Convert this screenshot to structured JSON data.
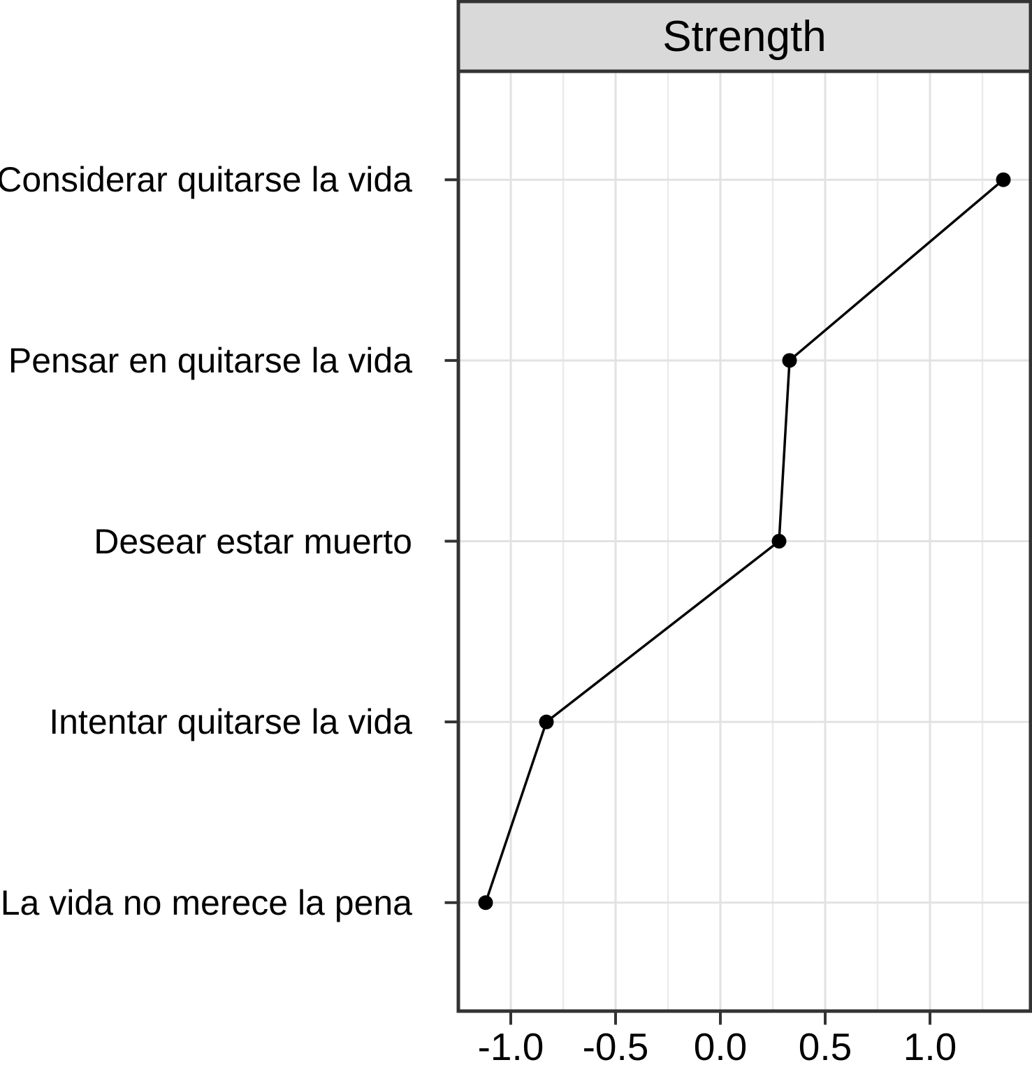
{
  "chart_data": {
    "type": "line",
    "orientation": "horizontal",
    "title": "Strength",
    "categories": [
      "Considerar quitarse la vida",
      "Pensar en quitarse la vida",
      "Desear estar muerto",
      "Intentar quitarse la vida",
      "La vida no merece la pena"
    ],
    "values": [
      1.35,
      0.33,
      0.28,
      -0.83,
      -1.12
    ],
    "x_ticks": [
      -1.0,
      -0.5,
      0.0,
      0.5,
      1.0
    ],
    "x_tick_labels": [
      "-1.0",
      "-0.5",
      "0.0",
      "0.5",
      "1.0"
    ],
    "xlim": [
      -1.25,
      1.48
    ],
    "minor_grid_step": 0.25,
    "grid": true,
    "legend": "none",
    "colors": {
      "strip_fill": "#d9d9d9",
      "border": "#333333",
      "grid_major": "#e2e2e2",
      "grid_minor": "#ebebeb",
      "series": "#000000",
      "text": "#000000",
      "panel_bg": "#ffffff"
    }
  }
}
